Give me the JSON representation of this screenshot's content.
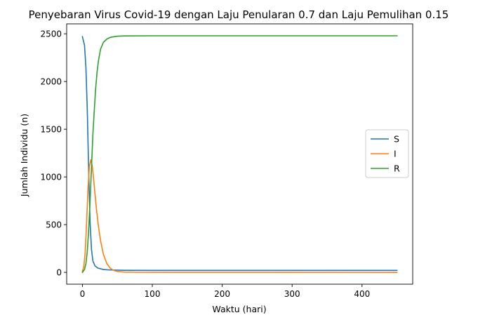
{
  "chart_data": {
    "type": "line",
    "title": "Penyebaran Virus Covid-19 dengan Laju Penularan 0.7 dan Laju Pemulihan 0.15",
    "xlabel": "Waktu (hari)",
    "ylabel": "Jumlah Individu (n)",
    "xlim": [
      -22.5,
      472.5
    ],
    "ylim": [
      -124,
      2604
    ],
    "xticks": [
      0,
      100,
      200,
      300,
      400
    ],
    "yticks": [
      0,
      500,
      1000,
      1500,
      2000,
      2500
    ],
    "grid": false,
    "legend_position": "center-right",
    "series": [
      {
        "name": "S",
        "color": "#1f77b4",
        "points": [
          [
            0,
            2470
          ],
          [
            3,
            2380
          ],
          [
            5,
            2150
          ],
          [
            7,
            1700
          ],
          [
            9,
            1050
          ],
          [
            11,
            520
          ],
          [
            13,
            240
          ],
          [
            15,
            120
          ],
          [
            18,
            68
          ],
          [
            22,
            45
          ],
          [
            30,
            30
          ],
          [
            40,
            25
          ],
          [
            60,
            22
          ],
          [
            100,
            21
          ],
          [
            200,
            21
          ],
          [
            300,
            21
          ],
          [
            450,
            21
          ]
        ]
      },
      {
        "name": "I",
        "color": "#ff7f0e",
        "points": [
          [
            0,
            10
          ],
          [
            2,
            60
          ],
          [
            4,
            210
          ],
          [
            6,
            520
          ],
          [
            8,
            880
          ],
          [
            10,
            1110
          ],
          [
            12,
            1180
          ],
          [
            14,
            1120
          ],
          [
            16,
            980
          ],
          [
            18,
            820
          ],
          [
            20,
            670
          ],
          [
            23,
            480
          ],
          [
            26,
            330
          ],
          [
            30,
            190
          ],
          [
            35,
            90
          ],
          [
            40,
            42
          ],
          [
            45,
            20
          ],
          [
            50,
            9
          ],
          [
            60,
            3
          ],
          [
            80,
            1
          ],
          [
            450,
            0
          ]
        ]
      },
      {
        "name": "R",
        "color": "#2ca02c",
        "points": [
          [
            0,
            0
          ],
          [
            3,
            30
          ],
          [
            5,
            90
          ],
          [
            7,
            220
          ],
          [
            9,
            450
          ],
          [
            11,
            750
          ],
          [
            13,
            1100
          ],
          [
            15,
            1450
          ],
          [
            17,
            1700
          ],
          [
            19,
            1930
          ],
          [
            21,
            2100
          ],
          [
            23,
            2220
          ],
          [
            26,
            2340
          ],
          [
            30,
            2410
          ],
          [
            35,
            2445
          ],
          [
            40,
            2463
          ],
          [
            50,
            2475
          ],
          [
            60,
            2478
          ],
          [
            100,
            2479
          ],
          [
            200,
            2479
          ],
          [
            450,
            2479
          ]
        ]
      }
    ]
  }
}
